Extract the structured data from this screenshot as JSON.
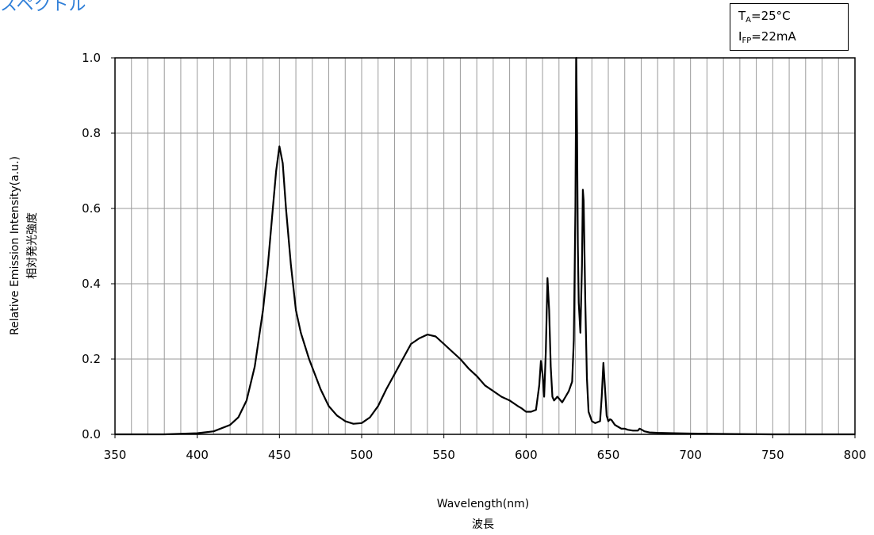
{
  "title": "スペクトル",
  "conditions": {
    "ta_main": "T",
    "ta_sub": "A",
    "ta_value": "=25°C",
    "ifp_main": "I",
    "ifp_sub": "FP",
    "ifp_value": "=22mA"
  },
  "chart_data": {
    "type": "line",
    "title": "スペクトル",
    "xlabel": "Wavelength(nm)",
    "xlabel_ja": "波長",
    "ylabel": "Relative Emission Intensity(a.u.)",
    "ylabel_ja": "相対発光強度",
    "xlim": [
      350,
      800
    ],
    "ylim": [
      0,
      1.0
    ],
    "x_ticks": [
      "350",
      "400",
      "450",
      "500",
      "550",
      "600",
      "650",
      "700",
      "750",
      "800"
    ],
    "y_ticks": [
      "0.0",
      "0.2",
      "0.4",
      "0.6",
      "0.8",
      "1.0"
    ],
    "grid": true,
    "series": [
      {
        "color": "#000000",
        "x": [
          350,
          380,
          400,
          410,
          420,
          425,
          430,
          435,
          440,
          443,
          446,
          448,
          450,
          452,
          454,
          457,
          460,
          463,
          468,
          475,
          480,
          485,
          490,
          495,
          500,
          505,
          510,
          515,
          520,
          525,
          530,
          535,
          540,
          545,
          550,
          555,
          560,
          565,
          570,
          575,
          580,
          585,
          590,
          595,
          597,
          600,
          603,
          606,
          608,
          609,
          610,
          611,
          612,
          613,
          614,
          615,
          616,
          617,
          618,
          619,
          620,
          622,
          624,
          626,
          628,
          629,
          630,
          630.5,
          631,
          631.5,
          632,
          633,
          634,
          634.5,
          635,
          636,
          637,
          638,
          640,
          642,
          645,
          646,
          647,
          648,
          649,
          650,
          651,
          652,
          654,
          656,
          658,
          660,
          662,
          665,
          668,
          669,
          670,
          672,
          675,
          680,
          690,
          700,
          720,
          750,
          800
        ],
        "y": [
          0.0,
          0.0,
          0.003,
          0.008,
          0.025,
          0.045,
          0.09,
          0.18,
          0.33,
          0.45,
          0.6,
          0.7,
          0.765,
          0.72,
          0.6,
          0.45,
          0.33,
          0.27,
          0.2,
          0.12,
          0.075,
          0.05,
          0.035,
          0.028,
          0.03,
          0.045,
          0.075,
          0.12,
          0.16,
          0.2,
          0.24,
          0.255,
          0.265,
          0.26,
          0.24,
          0.22,
          0.2,
          0.175,
          0.155,
          0.13,
          0.115,
          0.1,
          0.09,
          0.075,
          0.07,
          0.06,
          0.06,
          0.065,
          0.13,
          0.195,
          0.16,
          0.1,
          0.22,
          0.415,
          0.33,
          0.18,
          0.1,
          0.09,
          0.095,
          0.1,
          0.095,
          0.085,
          0.1,
          0.115,
          0.14,
          0.25,
          0.6,
          1.0,
          0.8,
          0.5,
          0.35,
          0.27,
          0.45,
          0.65,
          0.62,
          0.35,
          0.15,
          0.06,
          0.035,
          0.03,
          0.035,
          0.1,
          0.19,
          0.12,
          0.05,
          0.035,
          0.04,
          0.038,
          0.025,
          0.02,
          0.015,
          0.015,
          0.012,
          0.01,
          0.01,
          0.015,
          0.013,
          0.008,
          0.005,
          0.004,
          0.003,
          0.002,
          0.001,
          0.0,
          0.0
        ]
      }
    ]
  }
}
